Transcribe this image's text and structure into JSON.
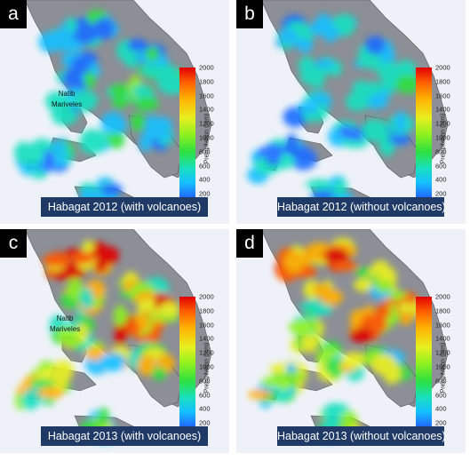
{
  "colorbar": {
    "label": "Precipitation (mm)",
    "ticks": [
      "2000",
      "1800",
      "1600",
      "1400",
      "1200",
      "1000",
      "800",
      "600",
      "400",
      "200",
      "0"
    ],
    "colors": [
      "#1515c8",
      "#1f6dff",
      "#16c0ff",
      "#18e0c0",
      "#2ee040",
      "#8cf020",
      "#e8f020",
      "#ffb000",
      "#ff5a00",
      "#e00000"
    ]
  },
  "annotations": {
    "natib": "Natib",
    "mariveles": "Mariveles"
  },
  "panels": [
    {
      "letter": "a",
      "caption": "Habagat 2012 (with volcanoes)",
      "intensity": 0.55
    },
    {
      "letter": "b",
      "caption": "Habagat 2012 (without volcanoes)",
      "intensity": 0.5
    },
    {
      "letter": "c",
      "caption": "Habagat 2013 (with volcanoes)",
      "intensity": 1.0
    },
    {
      "letter": "d",
      "caption": "Habagat 2013 (without volcanoes)",
      "intensity": 0.95
    }
  ]
}
